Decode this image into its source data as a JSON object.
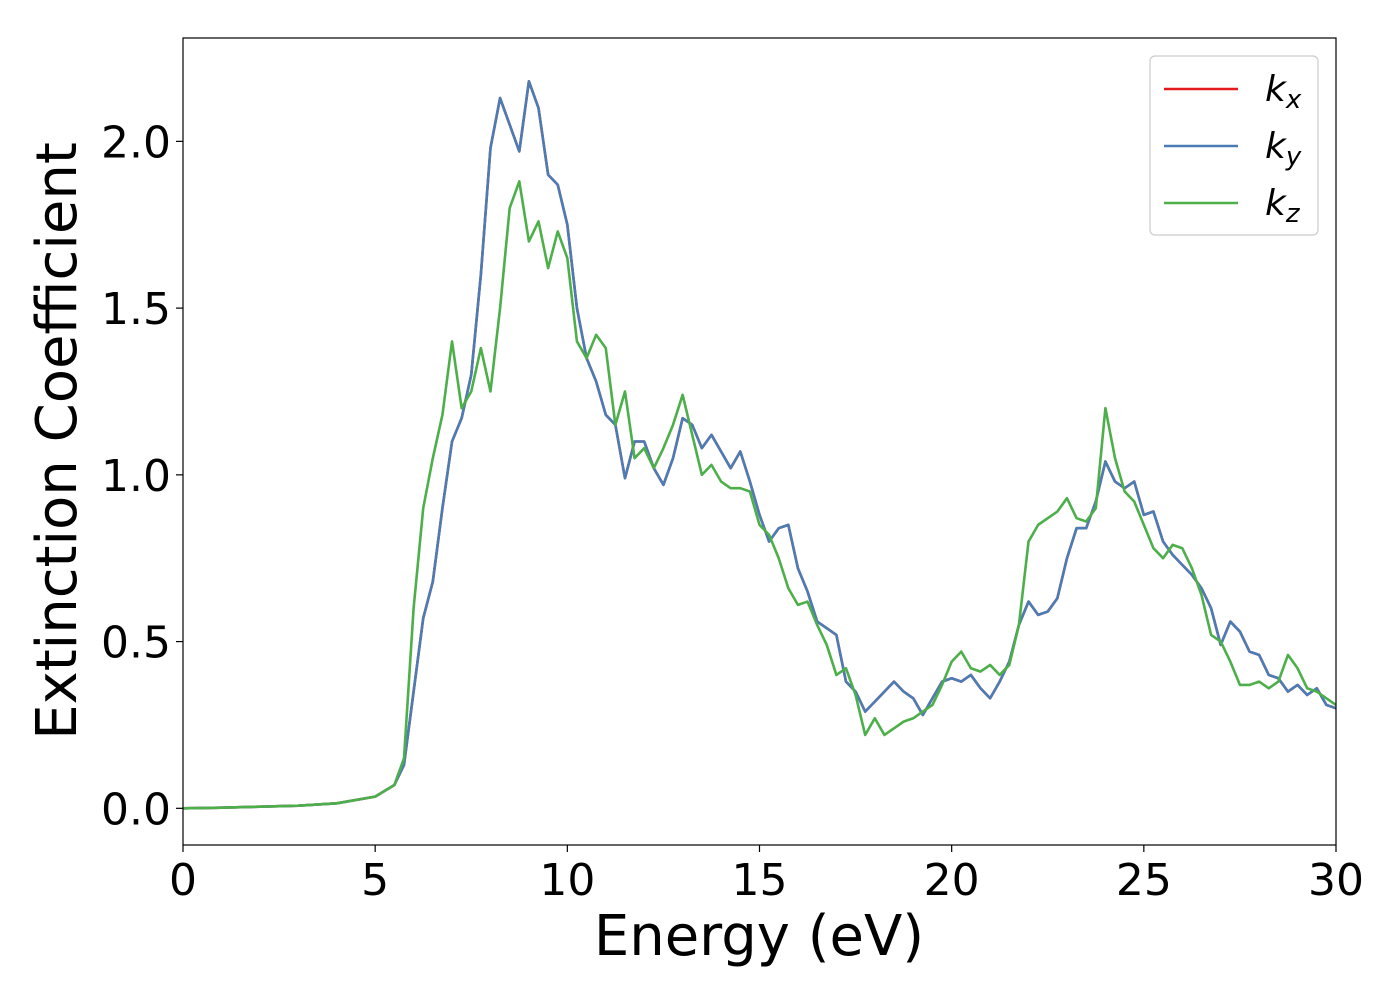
{
  "chart_data": {
    "type": "line",
    "xlabel": "Energy (eV)",
    "ylabel": "Extinction Coefficient",
    "xlim": [
      0,
      30
    ],
    "ylim": [
      -0.11,
      2.31
    ],
    "xticks": [
      0,
      5,
      10,
      15,
      20,
      25,
      30
    ],
    "yticks": [
      {
        "value": 0,
        "label": "0.0"
      },
      {
        "value": 0.5,
        "label": "0.5"
      },
      {
        "value": 1,
        "label": "1.0"
      },
      {
        "value": 1.5,
        "label": "1.5"
      },
      {
        "value": 2,
        "label": "2.0"
      }
    ],
    "legend": "upper right",
    "x": [
      0,
      1,
      2,
      3,
      4,
      5,
      5.5,
      5.75,
      6,
      6.25,
      6.5,
      6.75,
      7,
      7.25,
      7.5,
      7.75,
      8,
      8.25,
      8.5,
      8.75,
      9,
      9.25,
      9.5,
      9.75,
      10,
      10.25,
      10.5,
      10.75,
      11,
      11.25,
      11.5,
      11.75,
      12,
      12.25,
      12.5,
      12.75,
      13,
      13.25,
      13.5,
      13.75,
      14,
      14.25,
      14.5,
      14.75,
      15,
      15.25,
      15.5,
      15.75,
      16,
      16.25,
      16.5,
      16.75,
      17,
      17.25,
      17.5,
      17.75,
      18,
      18.25,
      18.5,
      18.75,
      19,
      19.25,
      19.5,
      19.75,
      20,
      20.25,
      20.5,
      20.75,
      21,
      21.25,
      21.5,
      21.75,
      22,
      22.25,
      22.5,
      22.75,
      23,
      23.25,
      23.5,
      23.75,
      24,
      24.25,
      24.5,
      24.75,
      25,
      25.25,
      25.5,
      25.75,
      26,
      26.25,
      26.5,
      26.75,
      27,
      27.25,
      27.5,
      27.75,
      28,
      28.25,
      28.5,
      28.75,
      29,
      29.25,
      29.5,
      29.75,
      30
    ],
    "series": [
      {
        "name": "kx",
        "color": "#e41a1c",
        "values": [
          0,
          0.002,
          0.005,
          0.008,
          0.015,
          0.035,
          0.07,
          0.13,
          0.35,
          0.57,
          0.68,
          0.9,
          1.1,
          1.17,
          1.3,
          1.6,
          1.98,
          2.13,
          2.05,
          1.97,
          2.18,
          2.1,
          1.9,
          1.87,
          1.75,
          1.5,
          1.35,
          1.28,
          1.18,
          1.15,
          0.99,
          1.1,
          1.1,
          1.02,
          0.97,
          1.05,
          1.17,
          1.15,
          1.08,
          1.12,
          1.07,
          1.02,
          1.07,
          0.98,
          0.88,
          0.8,
          0.84,
          0.85,
          0.72,
          0.65,
          0.56,
          0.54,
          0.52,
          0.38,
          0.35,
          0.29,
          0.32,
          0.35,
          0.38,
          0.35,
          0.33,
          0.28,
          0.33,
          0.38,
          0.39,
          0.38,
          0.4,
          0.36,
          0.33,
          0.38,
          0.44,
          0.55,
          0.62,
          0.58,
          0.59,
          0.63,
          0.75,
          0.84,
          0.84,
          0.92,
          1.04,
          0.98,
          0.96,
          0.98,
          0.88,
          0.89,
          0.8,
          0.76,
          0.73,
          0.7,
          0.66,
          0.6,
          0.49,
          0.56,
          0.53,
          0.47,
          0.46,
          0.4,
          0.39,
          0.35,
          0.37,
          0.34,
          0.36,
          0.31,
          0.3
        ]
      },
      {
        "name": "ky",
        "color": "#4a7db5",
        "values": [
          0,
          0.002,
          0.005,
          0.008,
          0.015,
          0.035,
          0.07,
          0.13,
          0.35,
          0.57,
          0.68,
          0.9,
          1.1,
          1.17,
          1.3,
          1.6,
          1.98,
          2.13,
          2.05,
          1.97,
          2.18,
          2.1,
          1.9,
          1.87,
          1.75,
          1.5,
          1.35,
          1.28,
          1.18,
          1.15,
          0.99,
          1.1,
          1.1,
          1.02,
          0.97,
          1.05,
          1.17,
          1.15,
          1.08,
          1.12,
          1.07,
          1.02,
          1.07,
          0.98,
          0.88,
          0.8,
          0.84,
          0.85,
          0.72,
          0.65,
          0.56,
          0.54,
          0.52,
          0.38,
          0.35,
          0.29,
          0.32,
          0.35,
          0.38,
          0.35,
          0.33,
          0.28,
          0.33,
          0.38,
          0.39,
          0.38,
          0.4,
          0.36,
          0.33,
          0.38,
          0.44,
          0.55,
          0.62,
          0.58,
          0.59,
          0.63,
          0.75,
          0.84,
          0.84,
          0.92,
          1.04,
          0.98,
          0.96,
          0.98,
          0.88,
          0.89,
          0.8,
          0.76,
          0.73,
          0.7,
          0.66,
          0.6,
          0.49,
          0.56,
          0.53,
          0.47,
          0.46,
          0.4,
          0.39,
          0.35,
          0.37,
          0.34,
          0.36,
          0.31,
          0.3
        ]
      },
      {
        "name": "kz",
        "color": "#4daf4a",
        "values": [
          0,
          0.002,
          0.005,
          0.008,
          0.015,
          0.035,
          0.07,
          0.15,
          0.6,
          0.9,
          1.05,
          1.18,
          1.4,
          1.2,
          1.25,
          1.38,
          1.25,
          1.5,
          1.8,
          1.88,
          1.7,
          1.76,
          1.62,
          1.73,
          1.65,
          1.4,
          1.35,
          1.42,
          1.38,
          1.15,
          1.25,
          1.05,
          1.08,
          1.02,
          1.08,
          1.15,
          1.24,
          1.12,
          1.0,
          1.03,
          0.98,
          0.96,
          0.96,
          0.95,
          0.85,
          0.82,
          0.75,
          0.66,
          0.61,
          0.62,
          0.55,
          0.49,
          0.4,
          0.42,
          0.34,
          0.22,
          0.27,
          0.22,
          0.24,
          0.26,
          0.27,
          0.29,
          0.31,
          0.37,
          0.44,
          0.47,
          0.42,
          0.41,
          0.43,
          0.4,
          0.43,
          0.55,
          0.8,
          0.85,
          0.87,
          0.89,
          0.93,
          0.87,
          0.86,
          0.9,
          1.2,
          1.05,
          0.95,
          0.92,
          0.85,
          0.78,
          0.75,
          0.79,
          0.78,
          0.72,
          0.64,
          0.52,
          0.5,
          0.44,
          0.37,
          0.37,
          0.38,
          0.36,
          0.38,
          0.46,
          0.42,
          0.36,
          0.35,
          0.33,
          0.31
        ]
      }
    ]
  }
}
